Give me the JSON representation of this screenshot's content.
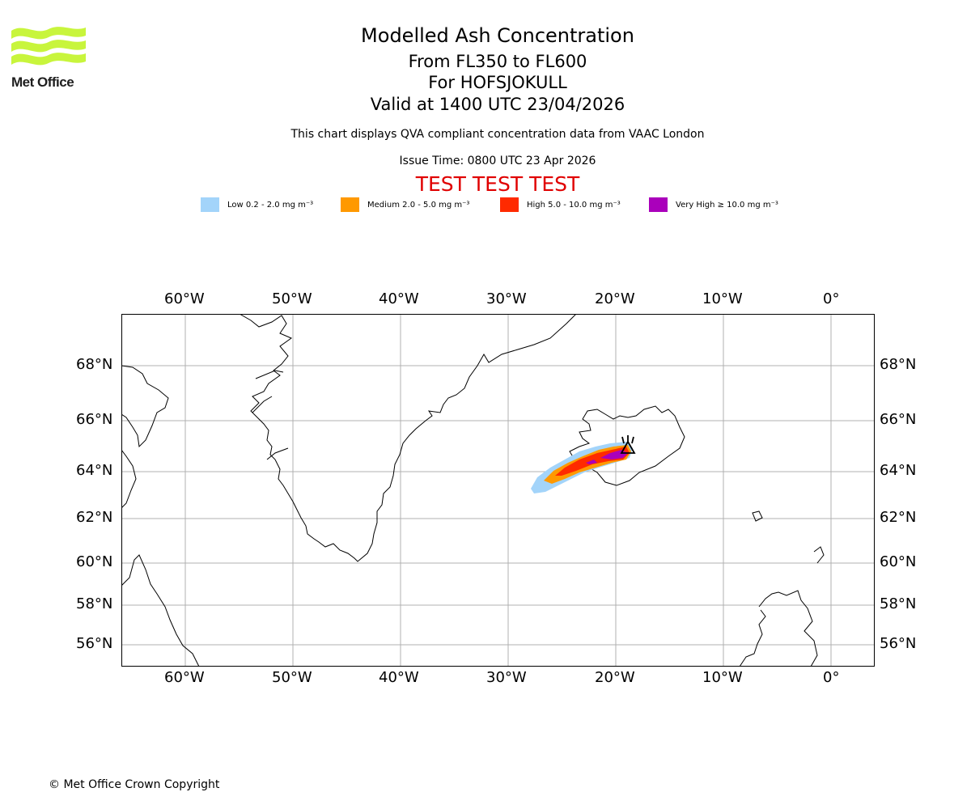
{
  "logo": {
    "text": "Met Office",
    "color": "#c8f53c"
  },
  "header": {
    "title": "Modelled Ash Concentration",
    "levels": "From FL350 to FL600",
    "volcano": "For HOFSJOKULL",
    "valid": "Valid at 1400 UTC 23/04/2026",
    "compliance": "This chart displays QVA compliant concentration data from VAAC London",
    "issue_time": "Issue Time: 0800 UTC 23 Apr 2026",
    "test_banner": "TEST TEST TEST"
  },
  "legend": [
    {
      "label": "Low 0.2 - 2.0 mg m⁻³",
      "color": "#a3d4fa"
    },
    {
      "label": "Medium 2.0 - 5.0 mg m⁻³",
      "color": "#ff9900"
    },
    {
      "label": "High 5.0 - 10.0 mg m⁻³",
      "color": "#ff2a00"
    },
    {
      "label": "Very High ≥ 10.0 mg m⁻³",
      "color": "#aa00bb"
    }
  ],
  "map": {
    "lon_labels": [
      "60°W",
      "50°W",
      "40°W",
      "30°W",
      "20°W",
      "10°W",
      "0°"
    ],
    "lat_labels": [
      "68°N",
      "66°N",
      "64°N",
      "62°N",
      "60°N",
      "58°N",
      "56°N"
    ]
  },
  "footer": {
    "copyright": "© Met Office Crown Copyright"
  }
}
